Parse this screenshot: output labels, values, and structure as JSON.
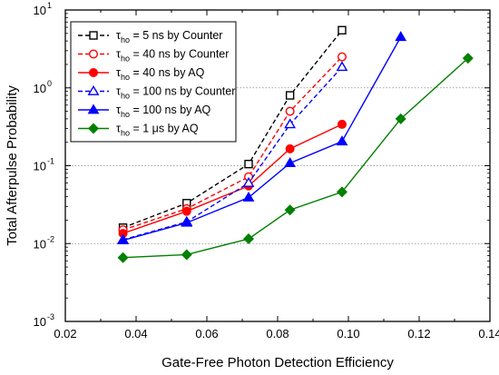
{
  "chart_data": {
    "type": "line",
    "xlabel": "Gate-Free Photon Detection Efficiency",
    "ylabel": "Total Afterpulse Probability",
    "xlim": [
      0.02,
      0.14
    ],
    "ylim": [
      0.001,
      10
    ],
    "y_scale": "log",
    "x_ticks": [
      "0.02",
      "0.04",
      "0.06",
      "0.08",
      "0.10",
      "0.12",
      "0.14"
    ],
    "y_ticks": [
      {
        "value": 0.001,
        "base": "10",
        "exp": "-3"
      },
      {
        "value": 0.01,
        "base": "10",
        "exp": "-2"
      },
      {
        "value": 0.1,
        "base": "10",
        "exp": "-1"
      },
      {
        "value": 1,
        "base": "10",
        "exp": "0"
      },
      {
        "value": 10,
        "base": "10",
        "exp": "1"
      }
    ],
    "grid": "horizontal dotted at 0.01, 0.1, 1",
    "legend_position": "top-left",
    "series": [
      {
        "name": "τho = 5 ns by Counter",
        "label_main": "τ",
        "label_sub": "ho",
        "label_rest": " = 5 ns by Counter",
        "color": "#000000",
        "dash": true,
        "marker": "square-open",
        "x": [
          0.0363,
          0.0543,
          0.0718,
          0.0835,
          0.0982
        ],
        "y": [
          0.016,
          0.033,
          0.105,
          0.8,
          5.5
        ]
      },
      {
        "name": "τho = 40 ns by Counter",
        "label_main": "τ",
        "label_sub": "ho",
        "label_rest": " = 40 ns by Counter",
        "color": "#ff0000",
        "dash": true,
        "marker": "circle-open",
        "x": [
          0.0363,
          0.0543,
          0.0718,
          0.0835,
          0.0982
        ],
        "y": [
          0.015,
          0.028,
          0.072,
          0.5,
          2.5
        ]
      },
      {
        "name": "τho = 40 ns by AQ",
        "label_main": "τ",
        "label_sub": "ho",
        "label_rest": " = 40 ns by AQ",
        "color": "#ff0000",
        "dash": false,
        "marker": "circle-filled",
        "x": [
          0.0363,
          0.0543,
          0.0718,
          0.0835,
          0.0982
        ],
        "y": [
          0.0135,
          0.026,
          0.055,
          0.165,
          0.34
        ]
      },
      {
        "name": "τho = 100 ns by Counter",
        "label_main": "τ",
        "label_sub": "ho",
        "label_rest": " = 100 ns by Counter",
        "color": "#0000ff",
        "dash": true,
        "marker": "triangle-open",
        "x": [
          0.0363,
          0.0543,
          0.0718,
          0.0835,
          0.0982
        ],
        "y": [
          0.0112,
          0.019,
          0.06,
          0.34,
          1.85
        ]
      },
      {
        "name": "τho = 100 ns by AQ",
        "label_main": "τ",
        "label_sub": "ho",
        "label_rest": " = 100 ns by AQ",
        "color": "#0000ff",
        "dash": false,
        "marker": "triangle-filled",
        "x": [
          0.0363,
          0.0543,
          0.0718,
          0.0835,
          0.0982,
          0.1148
        ],
        "y": [
          0.011,
          0.0185,
          0.039,
          0.108,
          0.205,
          4.5
        ]
      },
      {
        "name": "τho = 1 μs by AQ",
        "label_main": "τ",
        "label_sub": "ho",
        "label_rest": " = 1 μs by AQ",
        "color": "#008000",
        "dash": false,
        "marker": "diamond-filled",
        "x": [
          0.0363,
          0.0543,
          0.0718,
          0.0835,
          0.0982,
          0.1148,
          0.1338
        ],
        "y": [
          0.0066,
          0.0072,
          0.0115,
          0.027,
          0.046,
          0.4,
          2.4
        ]
      }
    ]
  }
}
